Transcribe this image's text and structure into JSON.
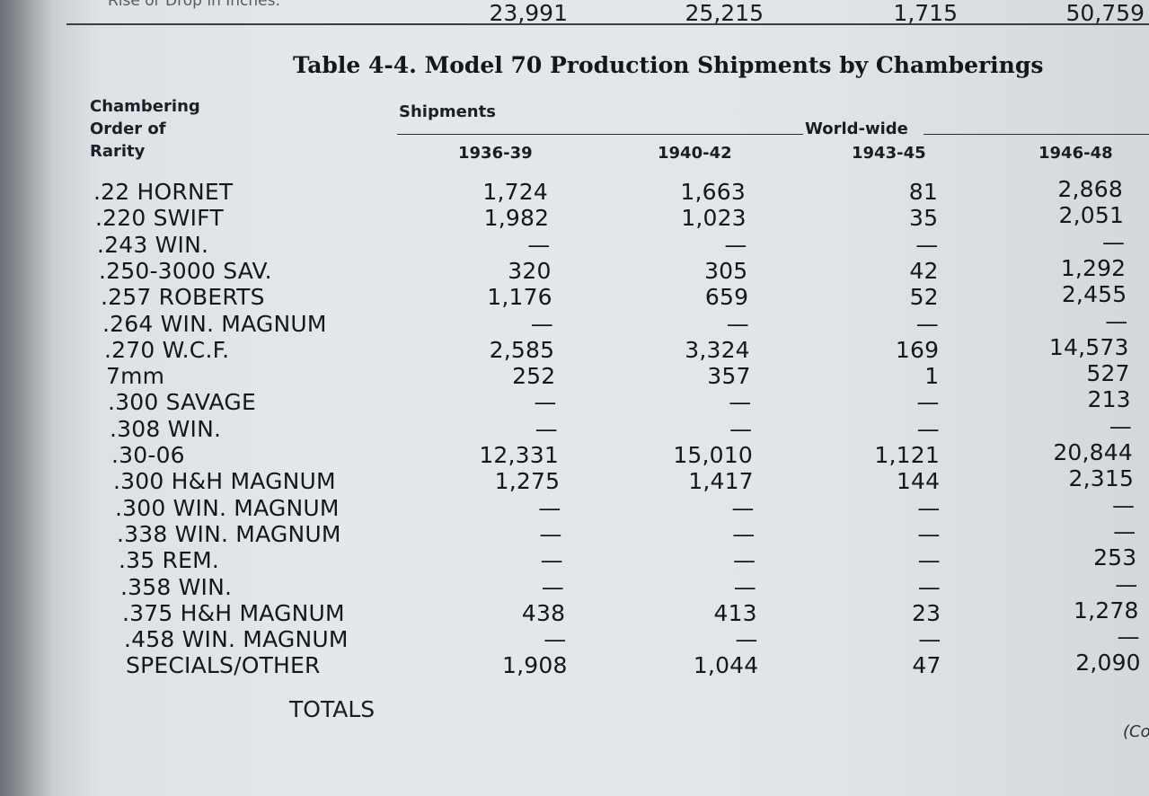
{
  "top_snippet": "Rise or Drop in Inches.",
  "title": "Table 4-4. Model 70 Production Shipments by Chamberings",
  "header_left": [
    "Chambering",
    "Order of",
    "Rarity"
  ],
  "header_shipments": "Shipments",
  "header_worldwide": "World-wide",
  "years": [
    "1936-39",
    "1940-42",
    "1943-45",
    "1946-48"
  ],
  "rows": [
    {
      "name": ".22 HORNET",
      "values": [
        "1,724",
        "1,663",
        "81",
        "2,868"
      ]
    },
    {
      "name": ".220 SWIFT",
      "values": [
        "1,982",
        "1,023",
        "35",
        "2,051"
      ]
    },
    {
      "name": ".243 WIN.",
      "values": [
        "—",
        "—",
        "—",
        "—"
      ]
    },
    {
      "name": ".250-3000 SAV.",
      "values": [
        "320",
        "305",
        "42",
        "1,292"
      ]
    },
    {
      "name": ".257 ROBERTS",
      "values": [
        "1,176",
        "659",
        "52",
        "2,455"
      ]
    },
    {
      "name": ".264 WIN. MAGNUM",
      "values": [
        "—",
        "—",
        "—",
        "—"
      ]
    },
    {
      "name": ".270 W.C.F.",
      "values": [
        "2,585",
        "3,324",
        "169",
        "14,573"
      ]
    },
    {
      "name": "7mm",
      "values": [
        "252",
        "357",
        "1",
        "527"
      ]
    },
    {
      "name": ".300 SAVAGE",
      "values": [
        "—",
        "—",
        "—",
        "213"
      ]
    },
    {
      "name": ".308 WIN.",
      "values": [
        "—",
        "—",
        "—",
        "—"
      ]
    },
    {
      "name": ".30-06",
      "values": [
        "12,331",
        "15,010",
        "1,121",
        "20,844"
      ]
    },
    {
      "name": ".300 H&H MAGNUM",
      "values": [
        "1,275",
        "1,417",
        "144",
        "2,315"
      ]
    },
    {
      "name": ".300 WIN. MAGNUM",
      "values": [
        "—",
        "—",
        "—",
        "—"
      ]
    },
    {
      "name": ".338 WIN. MAGNUM",
      "values": [
        "—",
        "—",
        "—",
        "—"
      ]
    },
    {
      "name": ".35 REM.",
      "values": [
        "—",
        "—",
        "—",
        "253"
      ]
    },
    {
      "name": ".358 WIN.",
      "values": [
        "—",
        "—",
        "—",
        "—"
      ]
    },
    {
      "name": ".375 H&H MAGNUM",
      "values": [
        "438",
        "413",
        "23",
        "1,278"
      ]
    },
    {
      "name": ".458 WIN. MAGNUM",
      "values": [
        "—",
        "—",
        "—",
        "—"
      ]
    },
    {
      "name": "SPECIALS/OTHER",
      "values": [
        "1,908",
        "1,044",
        "47",
        "2,090"
      ]
    }
  ],
  "totals_label": "TOTALS",
  "totals": [
    "23,991",
    "25,215",
    "1,715",
    "50,759"
  ],
  "continued": "(Co"
}
